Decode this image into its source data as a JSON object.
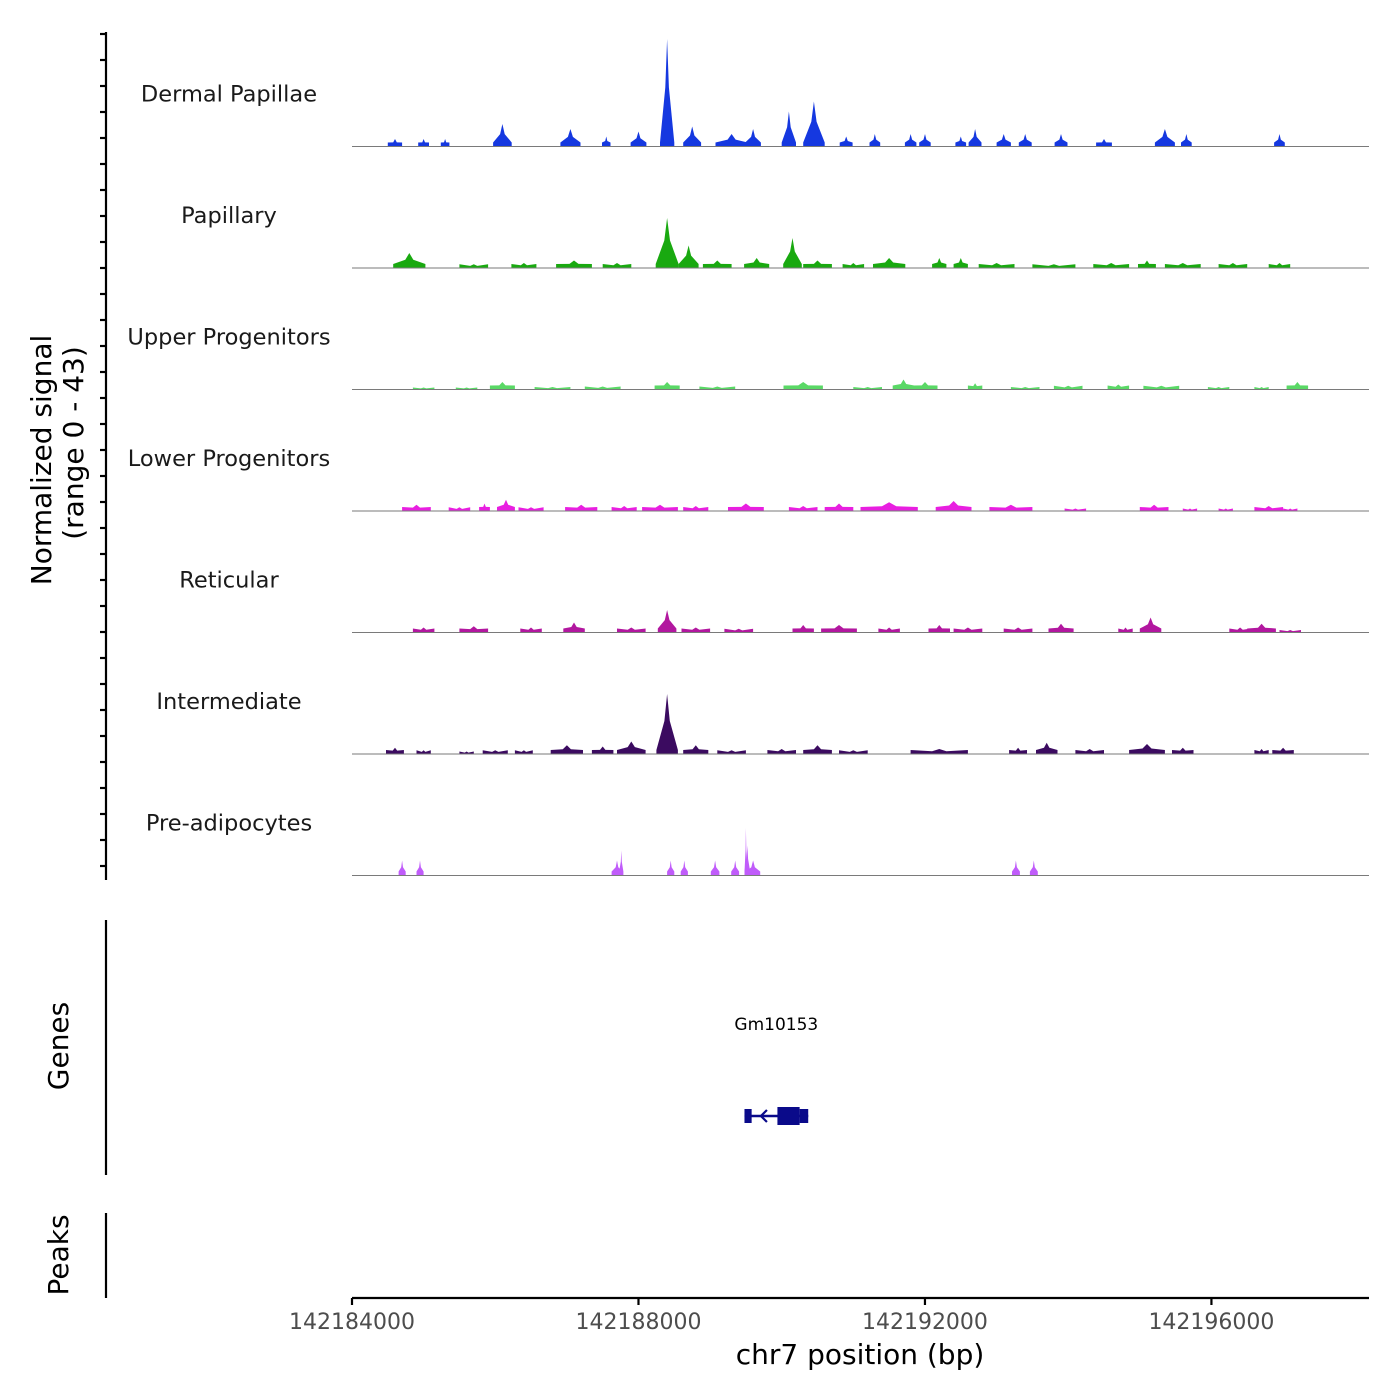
{
  "chart_data": {
    "type": "area",
    "title": "",
    "signal_panel": {
      "ylabel_line1": "Normalized signal",
      "ylabel_line2": "(range 0 - 43)",
      "ylim": [
        0,
        43
      ],
      "tracks": [
        {
          "name": "Dermal Papillae",
          "color": "#1538E0",
          "peaks": [
            {
              "x": 142184600,
              "y": 3,
              "w": 200
            },
            {
              "x": 142185000,
              "y": 3,
              "w": 150
            },
            {
              "x": 142185300,
              "y": 3,
              "w": 120
            },
            {
              "x": 142186100,
              "y": 9,
              "w": 260
            },
            {
              "x": 142187050,
              "y": 7,
              "w": 280
            },
            {
              "x": 142187550,
              "y": 4,
              "w": 120
            },
            {
              "x": 142188000,
              "y": 6,
              "w": 220
            },
            {
              "x": 142188400,
              "y": 43,
              "w": 200
            },
            {
              "x": 142188750,
              "y": 8,
              "w": 250
            },
            {
              "x": 142189300,
              "y": 5,
              "w": 450
            },
            {
              "x": 142189600,
              "y": 7,
              "w": 220
            },
            {
              "x": 142190100,
              "y": 14,
              "w": 200
            },
            {
              "x": 142190450,
              "y": 18,
              "w": 300
            },
            {
              "x": 142190900,
              "y": 4,
              "w": 180
            },
            {
              "x": 142191300,
              "y": 5,
              "w": 150
            },
            {
              "x": 142191800,
              "y": 5,
              "w": 160
            },
            {
              "x": 142192000,
              "y": 5,
              "w": 160
            },
            {
              "x": 142192500,
              "y": 4,
              "w": 150
            },
            {
              "x": 142192700,
              "y": 7,
              "w": 180
            },
            {
              "x": 142193100,
              "y": 5,
              "w": 200
            },
            {
              "x": 142193400,
              "y": 5,
              "w": 180
            },
            {
              "x": 142193900,
              "y": 5,
              "w": 180
            },
            {
              "x": 142194500,
              "y": 3,
              "w": 220
            },
            {
              "x": 142195350,
              "y": 7,
              "w": 280
            },
            {
              "x": 142195650,
              "y": 5,
              "w": 150
            },
            {
              "x": 142196950,
              "y": 5,
              "w": 150
            }
          ]
        },
        {
          "name": "Papillary",
          "color": "#19A910",
          "peaks": [
            {
              "x": 142184800,
              "y": 6,
              "w": 450
            },
            {
              "x": 142185700,
              "y": 1.5,
              "w": 400
            },
            {
              "x": 142186400,
              "y": 2,
              "w": 350
            },
            {
              "x": 142187100,
              "y": 3,
              "w": 500
            },
            {
              "x": 142187700,
              "y": 2,
              "w": 400
            },
            {
              "x": 142188400,
              "y": 20,
              "w": 320
            },
            {
              "x": 142188700,
              "y": 9,
              "w": 280
            },
            {
              "x": 142189100,
              "y": 3,
              "w": 400
            },
            {
              "x": 142189650,
              "y": 4,
              "w": 350
            },
            {
              "x": 142190150,
              "y": 12,
              "w": 260
            },
            {
              "x": 142190500,
              "y": 3,
              "w": 400
            },
            {
              "x": 142191000,
              "y": 2,
              "w": 300
            },
            {
              "x": 142191500,
              "y": 4,
              "w": 450
            },
            {
              "x": 142192200,
              "y": 4,
              "w": 200
            },
            {
              "x": 142192500,
              "y": 4,
              "w": 200
            },
            {
              "x": 142193000,
              "y": 2,
              "w": 500
            },
            {
              "x": 142193800,
              "y": 1.5,
              "w": 600
            },
            {
              "x": 142194600,
              "y": 2,
              "w": 500
            },
            {
              "x": 142195100,
              "y": 3,
              "w": 250
            },
            {
              "x": 142195600,
              "y": 2,
              "w": 500
            },
            {
              "x": 142196300,
              "y": 2,
              "w": 400
            },
            {
              "x": 142196950,
              "y": 2,
              "w": 300
            }
          ]
        },
        {
          "name": "Upper Progenitors",
          "color": "#5AD866",
          "peaks": [
            {
              "x": 142185000,
              "y": 0.8,
              "w": 300
            },
            {
              "x": 142185600,
              "y": 0.8,
              "w": 300
            },
            {
              "x": 142186100,
              "y": 3,
              "w": 350
            },
            {
              "x": 142186800,
              "y": 1,
              "w": 500
            },
            {
              "x": 142187500,
              "y": 1.2,
              "w": 500
            },
            {
              "x": 142188400,
              "y": 3,
              "w": 350
            },
            {
              "x": 142189100,
              "y": 1.2,
              "w": 500
            },
            {
              "x": 142190300,
              "y": 3,
              "w": 550
            },
            {
              "x": 142191200,
              "y": 1,
              "w": 400
            },
            {
              "x": 142191700,
              "y": 4,
              "w": 300
            },
            {
              "x": 142192000,
              "y": 3,
              "w": 350
            },
            {
              "x": 142192700,
              "y": 2.5,
              "w": 200
            },
            {
              "x": 142193400,
              "y": 1,
              "w": 400
            },
            {
              "x": 142194000,
              "y": 1.5,
              "w": 400
            },
            {
              "x": 142194700,
              "y": 2,
              "w": 300
            },
            {
              "x": 142195300,
              "y": 1.5,
              "w": 500
            },
            {
              "x": 142196100,
              "y": 1,
              "w": 300
            },
            {
              "x": 142196700,
              "y": 1,
              "w": 200
            },
            {
              "x": 142197200,
              "y": 3,
              "w": 300
            }
          ]
        },
        {
          "name": "Lower Progenitors",
          "color": "#E81FE0",
          "peaks": [
            {
              "x": 142184900,
              "y": 2.5,
              "w": 400
            },
            {
              "x": 142185500,
              "y": 1.5,
              "w": 300
            },
            {
              "x": 142185850,
              "y": 3,
              "w": 150
            },
            {
              "x": 142186150,
              "y": 4.5,
              "w": 250
            },
            {
              "x": 142186500,
              "y": 1.5,
              "w": 350
            },
            {
              "x": 142187200,
              "y": 2.5,
              "w": 450
            },
            {
              "x": 142187800,
              "y": 2,
              "w": 350
            },
            {
              "x": 142188300,
              "y": 2.5,
              "w": 500
            },
            {
              "x": 142188800,
              "y": 2,
              "w": 350
            },
            {
              "x": 142189500,
              "y": 3,
              "w": 500
            },
            {
              "x": 142190300,
              "y": 2,
              "w": 400
            },
            {
              "x": 142190800,
              "y": 3,
              "w": 400
            },
            {
              "x": 142191500,
              "y": 3.5,
              "w": 800
            },
            {
              "x": 142192400,
              "y": 4,
              "w": 500
            },
            {
              "x": 142193200,
              "y": 2.5,
              "w": 600
            },
            {
              "x": 142194100,
              "y": 1,
              "w": 300
            },
            {
              "x": 142195200,
              "y": 2.5,
              "w": 400
            },
            {
              "x": 142195700,
              "y": 1,
              "w": 200
            },
            {
              "x": 142196200,
              "y": 1,
              "w": 200
            },
            {
              "x": 142196800,
              "y": 2,
              "w": 400
            },
            {
              "x": 142197100,
              "y": 1,
              "w": 200
            }
          ]
        },
        {
          "name": "Reticular",
          "color": "#B2179F",
          "peaks": [
            {
              "x": 142185000,
              "y": 2,
              "w": 300
            },
            {
              "x": 142185700,
              "y": 2.5,
              "w": 400
            },
            {
              "x": 142186500,
              "y": 2,
              "w": 300
            },
            {
              "x": 142187100,
              "y": 4,
              "w": 300
            },
            {
              "x": 142187900,
              "y": 2,
              "w": 400
            },
            {
              "x": 142188400,
              "y": 9,
              "w": 260
            },
            {
              "x": 142188800,
              "y": 2,
              "w": 400
            },
            {
              "x": 142189400,
              "y": 1.5,
              "w": 400
            },
            {
              "x": 142190300,
              "y": 3,
              "w": 300
            },
            {
              "x": 142190800,
              "y": 3,
              "w": 500
            },
            {
              "x": 142191500,
              "y": 2,
              "w": 300
            },
            {
              "x": 142192200,
              "y": 3,
              "w": 300
            },
            {
              "x": 142192600,
              "y": 2,
              "w": 400
            },
            {
              "x": 142193300,
              "y": 2,
              "w": 400
            },
            {
              "x": 142193900,
              "y": 3.5,
              "w": 350
            },
            {
              "x": 142194800,
              "y": 2,
              "w": 200
            },
            {
              "x": 142195150,
              "y": 6,
              "w": 300
            },
            {
              "x": 142196400,
              "y": 2,
              "w": 300
            },
            {
              "x": 142196700,
              "y": 3.5,
              "w": 400
            },
            {
              "x": 142197100,
              "y": 1,
              "w": 300
            }
          ]
        },
        {
          "name": "Intermediate",
          "color": "#3B0B60",
          "peaks": [
            {
              "x": 142184600,
              "y": 2.5,
              "w": 250
            },
            {
              "x": 142185000,
              "y": 1.5,
              "w": 200
            },
            {
              "x": 142185600,
              "y": 1,
              "w": 200
            },
            {
              "x": 142186000,
              "y": 1.5,
              "w": 350
            },
            {
              "x": 142186400,
              "y": 1.5,
              "w": 250
            },
            {
              "x": 142187000,
              "y": 3.5,
              "w": 450
            },
            {
              "x": 142187500,
              "y": 3,
              "w": 300
            },
            {
              "x": 142187900,
              "y": 5,
              "w": 400
            },
            {
              "x": 142188400,
              "y": 24,
              "w": 300
            },
            {
              "x": 142188800,
              "y": 3.5,
              "w": 350
            },
            {
              "x": 142189300,
              "y": 1.5,
              "w": 400
            },
            {
              "x": 142190000,
              "y": 2,
              "w": 400
            },
            {
              "x": 142190500,
              "y": 3.5,
              "w": 400
            },
            {
              "x": 142191000,
              "y": 1.5,
              "w": 400
            },
            {
              "x": 142192200,
              "y": 2,
              "w": 800
            },
            {
              "x": 142193300,
              "y": 2.5,
              "w": 250
            },
            {
              "x": 142193700,
              "y": 4.5,
              "w": 300
            },
            {
              "x": 142194300,
              "y": 2,
              "w": 400
            },
            {
              "x": 142195100,
              "y": 4,
              "w": 500
            },
            {
              "x": 142195600,
              "y": 2.5,
              "w": 300
            },
            {
              "x": 142196700,
              "y": 2,
              "w": 200
            },
            {
              "x": 142197000,
              "y": 2.5,
              "w": 300
            }
          ]
        },
        {
          "name": "Pre-adipocytes",
          "color": "#C05CFA",
          "peaks": [
            {
              "x": 142184700,
              "y": 6,
              "w": 100
            },
            {
              "x": 142184950,
              "y": 6,
              "w": 100
            },
            {
              "x": 142187700,
              "y": 6,
              "w": 150
            },
            {
              "x": 142187760,
              "y": 10,
              "w": 60
            },
            {
              "x": 142188450,
              "y": 6,
              "w": 100
            },
            {
              "x": 142188640,
              "y": 6,
              "w": 100
            },
            {
              "x": 142189070,
              "y": 6,
              "w": 120
            },
            {
              "x": 142189350,
              "y": 6,
              "w": 110
            },
            {
              "x": 142189600,
              "y": 6,
              "w": 200
            },
            {
              "x": 142189520,
              "y": 12,
              "w": 80
            },
            {
              "x": 142189500,
              "y": 19,
              "w": 40
            },
            {
              "x": 142193270,
              "y": 6,
              "w": 110
            },
            {
              "x": 142193520,
              "y": 6,
              "w": 110
            }
          ]
        }
      ]
    },
    "genes_panel": {
      "ylabel": "Genes",
      "genes": [
        {
          "name": "Gm10153",
          "start": 142189480,
          "end": 142190370,
          "strand": "-",
          "exons": [
            [
              142189480,
              142189580
            ],
            [
              142189940,
              142190250
            ],
            [
              142190250,
              142190370
            ]
          ]
        }
      ]
    },
    "peaks_panel": {
      "ylabel": "Peaks",
      "peaks": []
    },
    "x_axis": {
      "xlabel": "chr7 position (bp)",
      "xlim": [
        142184000,
        142198200
      ],
      "ticks": [
        142184000,
        142188000,
        142192000,
        142196000
      ],
      "tick_labels": [
        "142184000",
        "142188000",
        "142192000",
        "142196000"
      ]
    }
  }
}
